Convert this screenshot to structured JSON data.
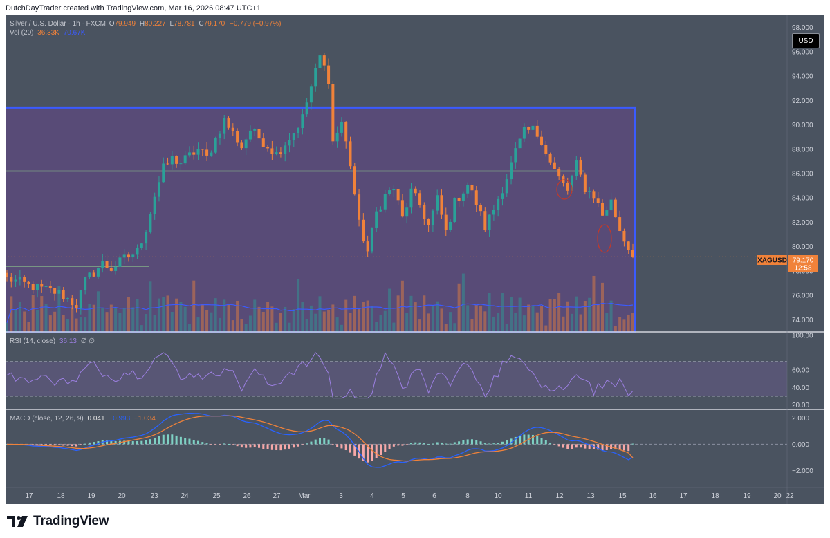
{
  "header": {
    "credit": "DutchDayTrader created with TradingView.com, Mar 16, 2026 08:47 UTC+1"
  },
  "footer": {
    "brand": "TradingView"
  },
  "currency_button": "USD",
  "legend": {
    "symbol": "Silver / U.S. Dollar · 1h · FXCM",
    "o_label": "O",
    "o": "79.949",
    "h_label": "H",
    "h": "80.227",
    "l_label": "L",
    "l": "78.781",
    "c_label": "C",
    "c": "79.170",
    "change": "−0.779 (−0.97%)",
    "vol_label": "Vol (20)",
    "vol1": "36.33K",
    "vol2": "70.67K",
    "rsi_label": "RSI (14, close)",
    "rsi_val": "36.13",
    "rsi_extra": "∅ ∅",
    "macd_label": "MACD (close, 12, 26, 9)",
    "macd_hist": "0.041",
    "macd_line": "−0.993",
    "macd_signal": "−1.034"
  },
  "price_badge": {
    "ticker": "XAGUSD",
    "price": "79.170",
    "countdown": "12:58"
  },
  "colors": {
    "background": "#4a5360",
    "box_fill": "#5b4a7b",
    "box_border": "#3b5bff",
    "up": "#2aa198",
    "down": "#f0823a",
    "level_line": "#8bc48a",
    "rsi": "#9b7fe0",
    "macd": "#2962ff",
    "signal": "#f0823a",
    "vol_ma": "#3b5bff"
  },
  "chart_data": [
    {
      "type": "candlestick",
      "title": "Silver / U.S. Dollar · 1h · FXCM",
      "ylim": [
        73,
        99
      ],
      "y_ticks": [
        "74.000",
        "76.000",
        "78.000",
        "80.000",
        "82.000",
        "84.000",
        "86.000",
        "88.000",
        "90.000",
        "92.000",
        "94.000",
        "96.000",
        "98.000"
      ],
      "x_ticks": [
        "17",
        "18",
        "19",
        "20",
        "23",
        "24",
        "25",
        "26",
        "27",
        "Mar",
        "3",
        "4",
        "5",
        "6",
        "8",
        "10",
        "11",
        "12",
        "13",
        "15",
        "16",
        "17",
        "18",
        "19",
        "20",
        "22"
      ],
      "close_path": [
        [
          0,
          77.4
        ],
        [
          6,
          76.7
        ],
        [
          12,
          76.2
        ],
        [
          16,
          75.2
        ],
        [
          18,
          77.2
        ],
        [
          22,
          78.6
        ],
        [
          24,
          78.2
        ],
        [
          27,
          79.0
        ],
        [
          30,
          79.6
        ],
        [
          32,
          81.5
        ],
        [
          34,
          84.2
        ],
        [
          36,
          86.4
        ],
        [
          38,
          87.2
        ],
        [
          40,
          86.9
        ],
        [
          44,
          88.0
        ],
        [
          46,
          87.3
        ],
        [
          50,
          90.4
        ],
        [
          54,
          88.2
        ],
        [
          56,
          89.6
        ],
        [
          60,
          88.3
        ],
        [
          62,
          87.6
        ],
        [
          66,
          89.4
        ],
        [
          68,
          90.6
        ],
        [
          70,
          93.1
        ],
        [
          72,
          95.6
        ],
        [
          74,
          93.8
        ],
        [
          75,
          88.6
        ],
        [
          77,
          90.2
        ],
        [
          79,
          86.8
        ],
        [
          81,
          81.8
        ],
        [
          83,
          79.6
        ],
        [
          85,
          82.8
        ],
        [
          87,
          84.2
        ],
        [
          89,
          84.8
        ],
        [
          91,
          82.3
        ],
        [
          93,
          84.5
        ],
        [
          95,
          83.4
        ],
        [
          97,
          81.7
        ],
        [
          99,
          83.9
        ],
        [
          101,
          81.2
        ],
        [
          103,
          83.6
        ],
        [
          106,
          85.1
        ],
        [
          108,
          83.6
        ],
        [
          110,
          81.6
        ],
        [
          112,
          83.1
        ],
        [
          115,
          85.7
        ],
        [
          117,
          87.8
        ],
        [
          119,
          89.4
        ],
        [
          121,
          89.6
        ],
        [
          123,
          88.8
        ],
        [
          125,
          86.9
        ],
        [
          127,
          85.6
        ],
        [
          129,
          84.6
        ],
        [
          131,
          86.7
        ],
        [
          133,
          84.8
        ],
        [
          135,
          84.2
        ],
        [
          137,
          82.6
        ],
        [
          139,
          83.7
        ],
        [
          141,
          81.4
        ],
        [
          143,
          79.9
        ],
        [
          144,
          79.17
        ]
      ],
      "levels": [
        86.2,
        78.4
      ],
      "range_box": {
        "top": 91.4,
        "bottom": 73.0,
        "end_index": 144
      }
    },
    {
      "type": "bar",
      "title": "Vol (20)",
      "description": "volume histogram with 20-period moving average",
      "last_value": "36.33K",
      "ma_value": "70.67K"
    },
    {
      "type": "line",
      "title": "RSI (14, close)",
      "ylim": [
        15,
        103
      ],
      "y_ticks": [
        "100.00",
        "60.00",
        "40.00",
        "20.00"
      ],
      "bands": [
        30,
        70
      ],
      "last_value": 36.13
    },
    {
      "type": "line",
      "title": "MACD (close, 12, 26, 9)",
      "ylim": [
        -3.3,
        2.6
      ],
      "y_ticks": [
        "2.000",
        "0.000",
        "−2.000"
      ],
      "last_values": {
        "histogram": 0.041,
        "macd": -0.993,
        "signal": -1.034
      }
    }
  ]
}
